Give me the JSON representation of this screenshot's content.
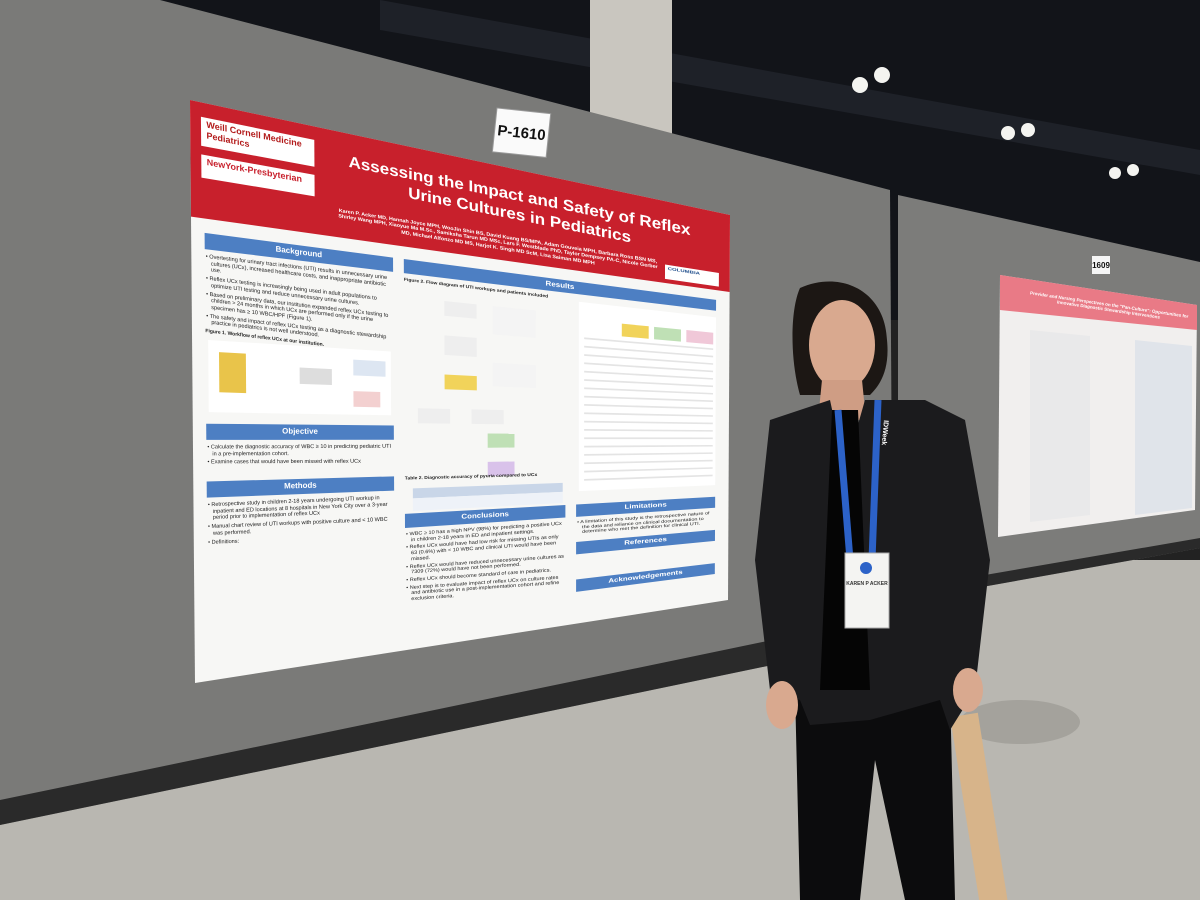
{
  "sign": "P-1610",
  "poster": {
    "logos": [
      "Weill Cornell Medicine",
      "Pediatrics",
      "NewYork-Presbyterian",
      "COLUMBIA"
    ],
    "title": [
      "Assessing the Impact and Safety of Reflex",
      "Urine Cultures in Pediatrics"
    ],
    "authors": "Karen P. Acker MD, Hannah Joyce MPH, WooJin Shin BS, David Kuang BS/MPA, Adam Gouveia MPH, Barbara Ross BSN MS, Shirley Wang MPH, Xiaoyue Ma M.Sc., Samiksha Tarun MD MSc, Lars F. Westblade PhD, Taylor Dempsey PA-C, Nicole Gerber MD, Michael Alfonzo MD MS, Harjot K. Singh MD ScM, Lisa Saiman MD MPH",
    "sections": [
      {
        "heading": "Background",
        "bullets": [
          "Overtesting for urinary tract infections (UTI) results in unnecessary urine cultures (UCx), increased healthcare costs, and inappropriate antibiotic use.",
          "Reflex UCx testing is increasingly being used in adult populations to optimize UTI testing and reduce unnecessary urine cultures.",
          "Based on preliminary data, our institution expanded reflex UCx testing to children > 24 months in which UCx are performed only if the urine specimen has ≥ 10 WBC/HPF (Figure 1).",
          "The safety and impact of reflex UCx testing as a diagnostic stewardship practice in pediatrics is not well understood."
        ],
        "caption": "Figure 1. Workflow of reflex UCx at our institution."
      },
      {
        "heading": "Objective",
        "bullets": [
          "Calculate the diagnostic accuracy of WBC ≥ 10 in predicting pediatric UTI in a pre-implementation cohort.",
          "Examine cases that would have been missed with reflex UCx"
        ]
      },
      {
        "heading": "Methods",
        "bullets": [
          "Retrospective study in children 2-18 years undergoing UTI workup in inpatient and ED locations at 8 hospitals in New York City over a 3-year period prior to implementation of reflex UCx",
          "Manual chart review of UTI workups with positive culture and < 10 WBC was performed.",
          "Definitions:"
        ]
      },
      {
        "heading": "Results",
        "caption": "Figure 2. Flow diagram of UTI workups and patients included"
      },
      {
        "heading": "Conclusions",
        "bullets": [
          "WBC ≥ 10 has a high NPV (98%) for predicting a positive UCx in children 2-18 years in ED and inpatient settings.",
          "Reflex UCx would have had low risk for missing UTIs as only 63 (0.6%) with < 10 WBC and clinical UTI would have been missed.",
          "Reflex UCx would have reduced unnecessary urine cultures as 7309 (72%) would have not been performed.",
          "Reflex UCx should become standard of care in pediatrics.",
          "Next step is to evaluate impact of reflex UCx on culture rates and antibiotic use in a post-implementation cohort and refine exclusion criteria."
        ]
      },
      {
        "heading": "Limitations",
        "bullets": [
          "A limitation of this study is the retrospective nature of the data and reliance on clinical documentation to determine who met the definition for clinical UTI."
        ]
      },
      {
        "heading": "References"
      },
      {
        "heading": "Acknowledgements"
      }
    ],
    "table_caption": "Table 2. Diagnostic accuracy of pyuria compared to UCx"
  },
  "neighbor_sign": "1609",
  "neighbor_poster": {
    "title": "Provider and Nursing Perspectives on the \"Pan-Culture\": Opportunities for Innovative Diagnostic Stewardship Interventions"
  },
  "badge": "KAREN P ACKER",
  "lanyard": "IDWeek"
}
